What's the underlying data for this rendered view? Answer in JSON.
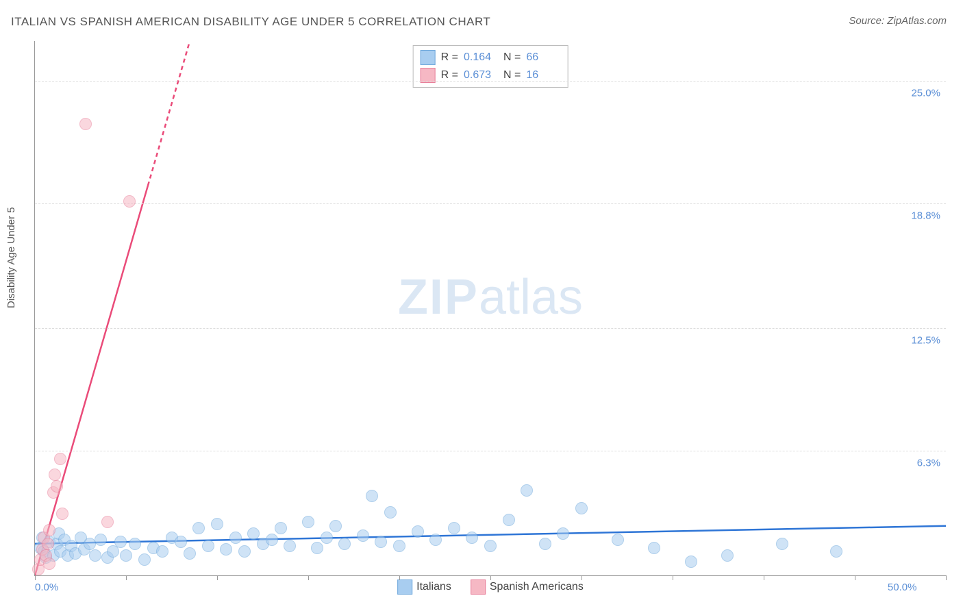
{
  "title": "ITALIAN VS SPANISH AMERICAN DISABILITY AGE UNDER 5 CORRELATION CHART",
  "source_label": "Source:",
  "source_value": "ZipAtlas.com",
  "ylabel": "Disability Age Under 5",
  "watermark_zip": "ZIP",
  "watermark_atlas": "atlas",
  "chart": {
    "type": "scatter",
    "xlim": [
      0,
      50
    ],
    "ylim": [
      0,
      27
    ],
    "x_ticks": [
      0,
      5,
      10,
      15,
      20,
      25,
      30,
      35,
      40,
      45,
      50
    ],
    "x_tick_labels": {
      "0": "0.0%",
      "50": "50.0%"
    },
    "y_gridlines": [
      6.3,
      12.5,
      18.8,
      25.0
    ],
    "y_tick_labels": [
      "6.3%",
      "12.5%",
      "18.8%",
      "25.0%"
    ],
    "background_color": "#ffffff",
    "grid_color": "#dddddd",
    "axis_color": "#999999",
    "tick_label_color": "#5b8fd6",
    "series": [
      {
        "name": "Italians",
        "color_fill": "#a8cdf0",
        "color_stroke": "#6fa8dc",
        "fill_opacity": 0.55,
        "marker_radius": 9,
        "r_value": "0.164",
        "n_value": "66",
        "trend": {
          "x1": 0,
          "y1": 1.6,
          "x2": 50,
          "y2": 2.5,
          "color": "#2e75d6",
          "width": 2.5,
          "dash_from_x": null
        },
        "points": [
          [
            0.3,
            1.4
          ],
          [
            0.4,
            1.9
          ],
          [
            0.5,
            1.2
          ],
          [
            0.6,
            0.9
          ],
          [
            0.8,
            1.7
          ],
          [
            1.0,
            1.0
          ],
          [
            1.2,
            1.6
          ],
          [
            1.3,
            2.1
          ],
          [
            1.4,
            1.2
          ],
          [
            1.6,
            1.8
          ],
          [
            1.8,
            1.0
          ],
          [
            2.0,
            1.5
          ],
          [
            2.2,
            1.1
          ],
          [
            2.5,
            1.9
          ],
          [
            2.7,
            1.3
          ],
          [
            3.0,
            1.6
          ],
          [
            3.3,
            1.0
          ],
          [
            3.6,
            1.8
          ],
          [
            4.0,
            0.9
          ],
          [
            4.3,
            1.2
          ],
          [
            4.7,
            1.7
          ],
          [
            5.0,
            1.0
          ],
          [
            5.5,
            1.6
          ],
          [
            6.0,
            0.8
          ],
          [
            6.5,
            1.4
          ],
          [
            7.0,
            1.2
          ],
          [
            7.5,
            1.9
          ],
          [
            8.0,
            1.7
          ],
          [
            8.5,
            1.1
          ],
          [
            9.0,
            2.4
          ],
          [
            9.5,
            1.5
          ],
          [
            10.0,
            2.6
          ],
          [
            10.5,
            1.3
          ],
          [
            11.0,
            1.9
          ],
          [
            11.5,
            1.2
          ],
          [
            12.0,
            2.1
          ],
          [
            12.5,
            1.6
          ],
          [
            13.0,
            1.8
          ],
          [
            13.5,
            2.4
          ],
          [
            14.0,
            1.5
          ],
          [
            15.0,
            2.7
          ],
          [
            15.5,
            1.4
          ],
          [
            16.0,
            1.9
          ],
          [
            16.5,
            2.5
          ],
          [
            17.0,
            1.6
          ],
          [
            18.0,
            2.0
          ],
          [
            18.5,
            4.0
          ],
          [
            19.0,
            1.7
          ],
          [
            19.5,
            3.2
          ],
          [
            20.0,
            1.5
          ],
          [
            21.0,
            2.2
          ],
          [
            22.0,
            1.8
          ],
          [
            23.0,
            2.4
          ],
          [
            24.0,
            1.9
          ],
          [
            25.0,
            1.5
          ],
          [
            26.0,
            2.8
          ],
          [
            27.0,
            4.3
          ],
          [
            28.0,
            1.6
          ],
          [
            29.0,
            2.1
          ],
          [
            30.0,
            3.4
          ],
          [
            32.0,
            1.8
          ],
          [
            34.0,
            1.4
          ],
          [
            36.0,
            0.7
          ],
          [
            38.0,
            1.0
          ],
          [
            41.0,
            1.6
          ],
          [
            44.0,
            1.2
          ]
        ]
      },
      {
        "name": "Spanish Americans",
        "color_fill": "#f6b8c4",
        "color_stroke": "#e87f9a",
        "fill_opacity": 0.55,
        "marker_radius": 9,
        "r_value": "0.673",
        "n_value": "16",
        "trend": {
          "x1": 0,
          "y1": 0.0,
          "x2": 8.5,
          "y2": 27.0,
          "color": "#ea4b79",
          "width": 2.5,
          "dash_from_x": 6.2
        },
        "points": [
          [
            0.2,
            0.3
          ],
          [
            0.3,
            0.8
          ],
          [
            0.4,
            1.3
          ],
          [
            0.5,
            1.9
          ],
          [
            0.6,
            1.0
          ],
          [
            0.7,
            1.6
          ],
          [
            0.8,
            2.3
          ],
          [
            0.8,
            0.6
          ],
          [
            1.0,
            4.2
          ],
          [
            1.1,
            5.1
          ],
          [
            1.2,
            4.5
          ],
          [
            1.4,
            5.9
          ],
          [
            1.5,
            3.1
          ],
          [
            2.8,
            22.8
          ],
          [
            4.0,
            2.7
          ],
          [
            5.2,
            18.9
          ]
        ]
      }
    ],
    "legend_bottom": [
      {
        "label": "Italians",
        "fill": "#a8cdf0",
        "stroke": "#6fa8dc"
      },
      {
        "label": "Spanish Americans",
        "fill": "#f6b8c4",
        "stroke": "#e87f9a"
      }
    ]
  }
}
